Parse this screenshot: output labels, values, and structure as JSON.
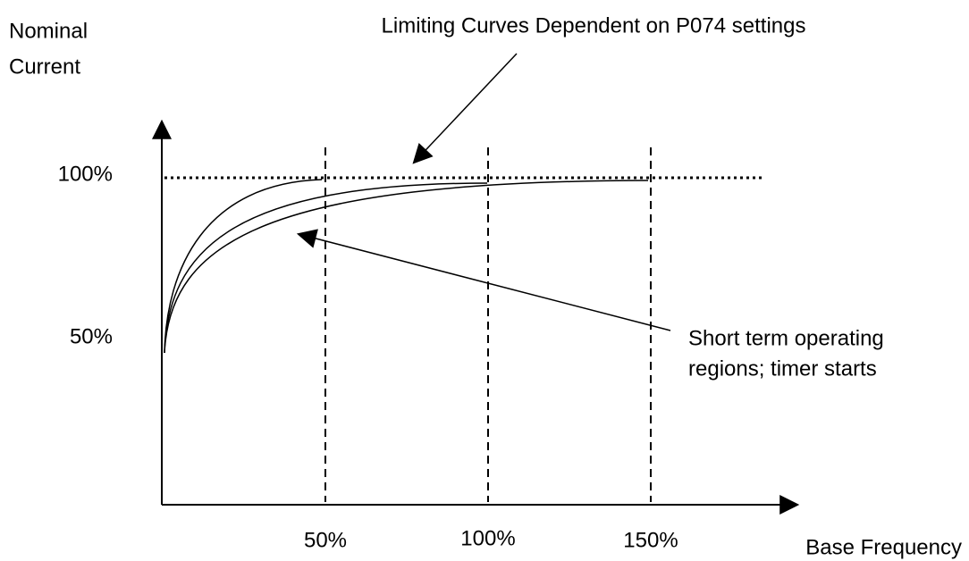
{
  "y_axis_label": [
    "Nominal",
    "Current"
  ],
  "x_axis_label": "Base Frequency",
  "y_tick_labels": [
    "100%",
    "50%"
  ],
  "x_tick_labels": [
    "50%",
    "100%",
    "150%"
  ],
  "annotations": {
    "limiting_curves": "Limiting Curves Dependent on P074 settings",
    "short_term": [
      "Short term operating",
      "regions; timer starts"
    ]
  }
}
